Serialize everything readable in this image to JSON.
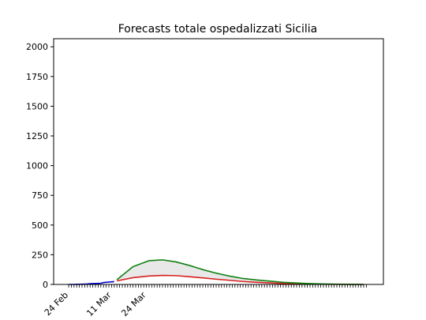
{
  "chart_data": {
    "type": "line",
    "title": "Forecasts totale ospedalizzati Sicilia",
    "xlabel": "",
    "ylabel": "",
    "ylim": [
      0,
      2068
    ],
    "y_ticks": [
      0,
      250,
      500,
      750,
      1000,
      1250,
      1500,
      1750,
      2000
    ],
    "x_tick_labels": [
      "24 Feb",
      "11 Mar",
      "24 Mar"
    ],
    "grid": false,
    "legend": "none",
    "colors": {
      "observed": "#0000cc",
      "lower": "#d62020",
      "upper": "#108010",
      "band": "#e8e8e8"
    },
    "series": [
      {
        "role": "observed",
        "x": [
          0,
          1,
          2,
          3,
          4,
          5,
          6,
          7,
          8,
          9,
          10,
          11,
          12,
          13,
          14,
          15,
          16,
          17
        ],
        "y": [
          0,
          0,
          0,
          1,
          1,
          2,
          3,
          4,
          6,
          7,
          8,
          9,
          10,
          16,
          18,
          20,
          22,
          24
        ]
      },
      {
        "role": "lower",
        "x": [
          18,
          24,
          30,
          35,
          40,
          45,
          50,
          55,
          60,
          65,
          70,
          75,
          80,
          85,
          90,
          95,
          100,
          105,
          110
        ],
        "y": [
          30,
          57,
          71,
          76,
          74,
          65,
          55,
          44,
          35,
          25,
          18,
          13,
          8,
          5,
          3,
          2,
          1,
          0,
          0
        ]
      },
      {
        "role": "upper",
        "x": [
          18,
          24,
          30,
          35,
          40,
          45,
          50,
          55,
          60,
          65,
          70,
          75,
          80,
          85,
          90,
          95,
          100,
          105,
          110
        ],
        "y": [
          40,
          150,
          200,
          207,
          190,
          160,
          125,
          95,
          70,
          50,
          38,
          28,
          18,
          12,
          7,
          4,
          2,
          1,
          0
        ]
      }
    ]
  }
}
